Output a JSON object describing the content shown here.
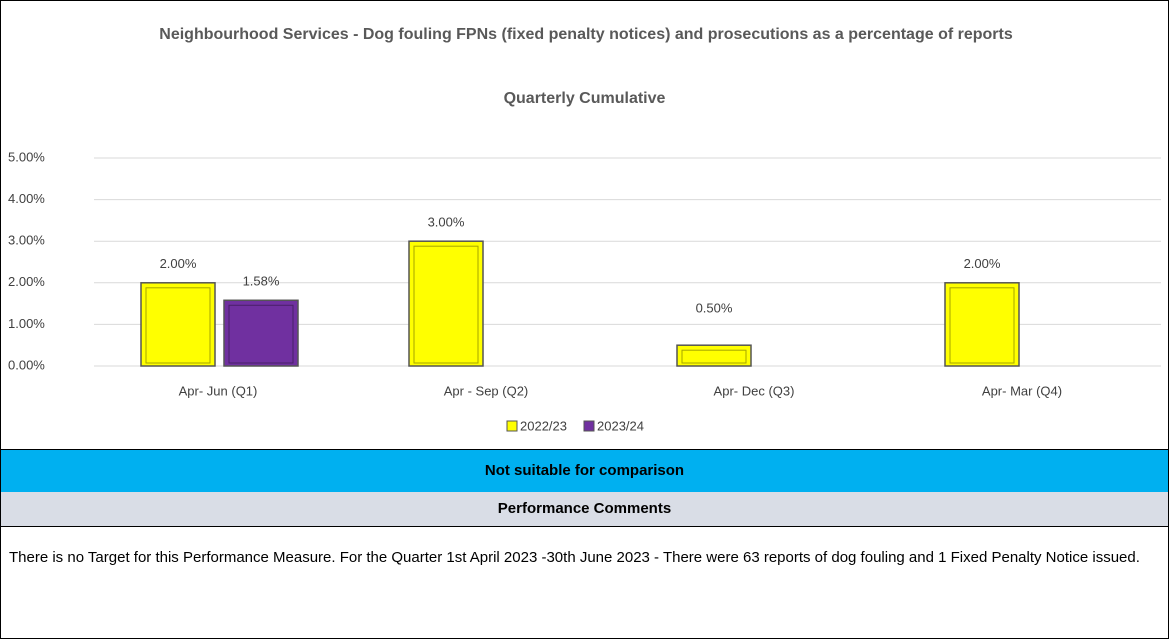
{
  "chart_data": {
    "type": "bar",
    "title": "Neighbourhood Services - Dog fouling FPNs (fixed penalty notices) and prosecutions as a percentage of reports",
    "subtitle": "Quarterly Cumulative",
    "categories": [
      "Apr- Jun  (Q1)",
      "Apr - Sep  (Q2)",
      "Apr- Dec  (Q3)",
      "Apr- Mar  (Q4)"
    ],
    "series": [
      {
        "name": "2022/23",
        "color": "#ffff00",
        "values": [
          2,
          3,
          0.5,
          2
        ],
        "value_labels": [
          "2.00%",
          "3.00%",
          "0.50%",
          "2.00%"
        ]
      },
      {
        "name": "2023/24",
        "color": "#7030a0",
        "values": [
          1.58,
          null,
          null,
          null
        ],
        "value_labels": [
          "1.58%",
          null,
          null,
          null
        ]
      }
    ],
    "ylim": [
      0,
      5
    ],
    "yticks": [
      {
        "value": 0,
        "label": "0.00%"
      },
      {
        "value": 1,
        "label": "1.00%"
      },
      {
        "value": 2,
        "label": "2.00%"
      },
      {
        "value": 3,
        "label": "3.00%"
      },
      {
        "value": 4,
        "label": "4.00%"
      },
      {
        "value": 5,
        "label": "5.00%"
      }
    ],
    "grid": true,
    "legend": "bottom"
  },
  "banner": "Not suitable for comparison",
  "comments_heading": "Performance Comments",
  "comments": "There is no Target for this Performance Measure. For the Quarter 1st April 2023 -30th June 2023 - There were 63 reports of dog fouling and 1 Fixed Penalty Notice issued."
}
